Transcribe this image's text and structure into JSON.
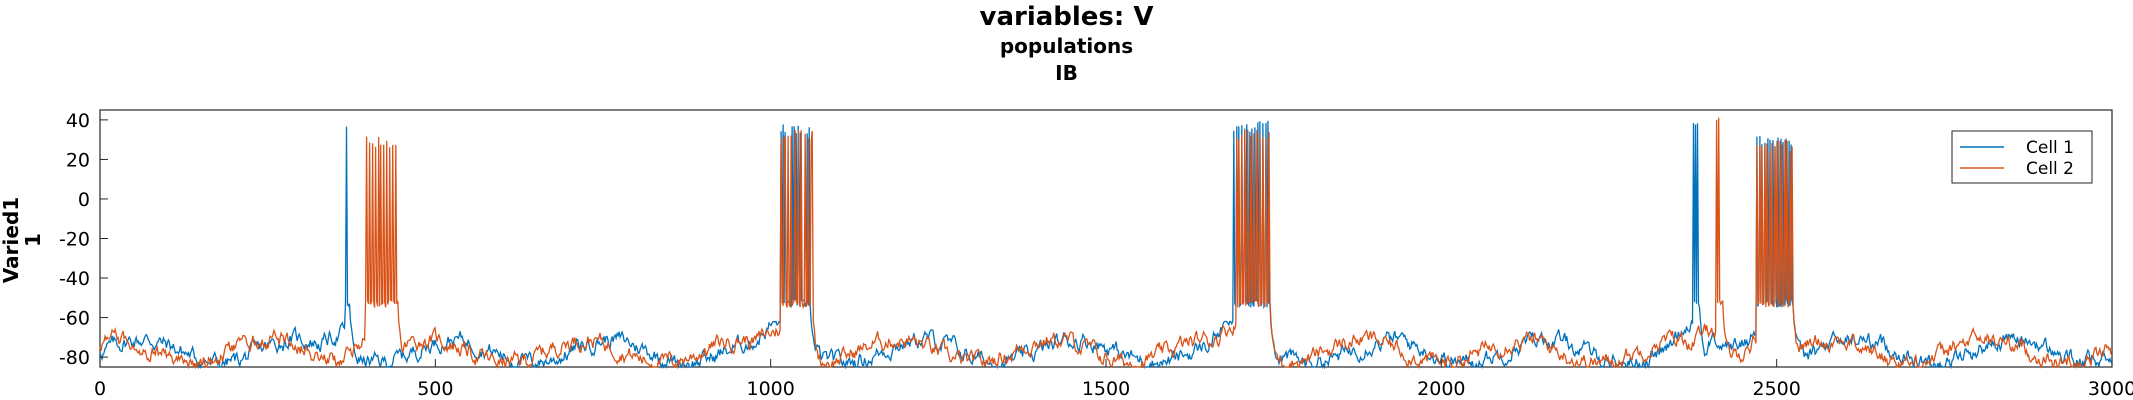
{
  "figure": {
    "title": "variables: V",
    "subtitle_line1": "populations",
    "subtitle_line2": "IB"
  },
  "chart_data": {
    "type": "line",
    "ylabel_line1": "Varied1",
    "ylabel_line2": "1",
    "xlabel": "",
    "xlim": [
      0,
      3000
    ],
    "ylim": [
      -85,
      45
    ],
    "xticks": [
      0,
      500,
      1000,
      1500,
      2000,
      2500,
      3000
    ],
    "yticks": [
      40,
      20,
      0,
      -20,
      -40,
      -60,
      -80
    ],
    "grid": false,
    "legend_position": "top-right",
    "baseline_range": [
      -85,
      -62
    ],
    "series": [
      {
        "name": "Cell 1",
        "color": "#0072BD",
        "bursts": [
          {
            "start": 365,
            "end": 372,
            "peak": 42,
            "trough": -55,
            "spikes": 3
          },
          {
            "start": 1015,
            "end": 1060,
            "peak": 38,
            "trough": -55,
            "spikes": 14
          },
          {
            "start": 1690,
            "end": 1745,
            "peak": 40,
            "trough": -55,
            "spikes": 14
          },
          {
            "start": 2375,
            "end": 2385,
            "peak": 42,
            "trough": -55,
            "spikes": 3
          },
          {
            "start": 2470,
            "end": 2525,
            "peak": 32,
            "trough": -55,
            "spikes": 14
          }
        ]
      },
      {
        "name": "Cell 2",
        "color": "#D95319",
        "bursts": [
          {
            "start": 395,
            "end": 445,
            "peak": 32,
            "trough": -55,
            "spikes": 22
          },
          {
            "start": 1015,
            "end": 1062,
            "peak": 35,
            "trough": -55,
            "spikes": 22
          },
          {
            "start": 1695,
            "end": 1745,
            "peak": 35,
            "trough": -55,
            "spikes": 22
          },
          {
            "start": 2410,
            "end": 2420,
            "peak": 42,
            "trough": -55,
            "spikes": 3
          },
          {
            "start": 2470,
            "end": 2525,
            "peak": 30,
            "trough": -55,
            "spikes": 22
          }
        ]
      }
    ]
  }
}
